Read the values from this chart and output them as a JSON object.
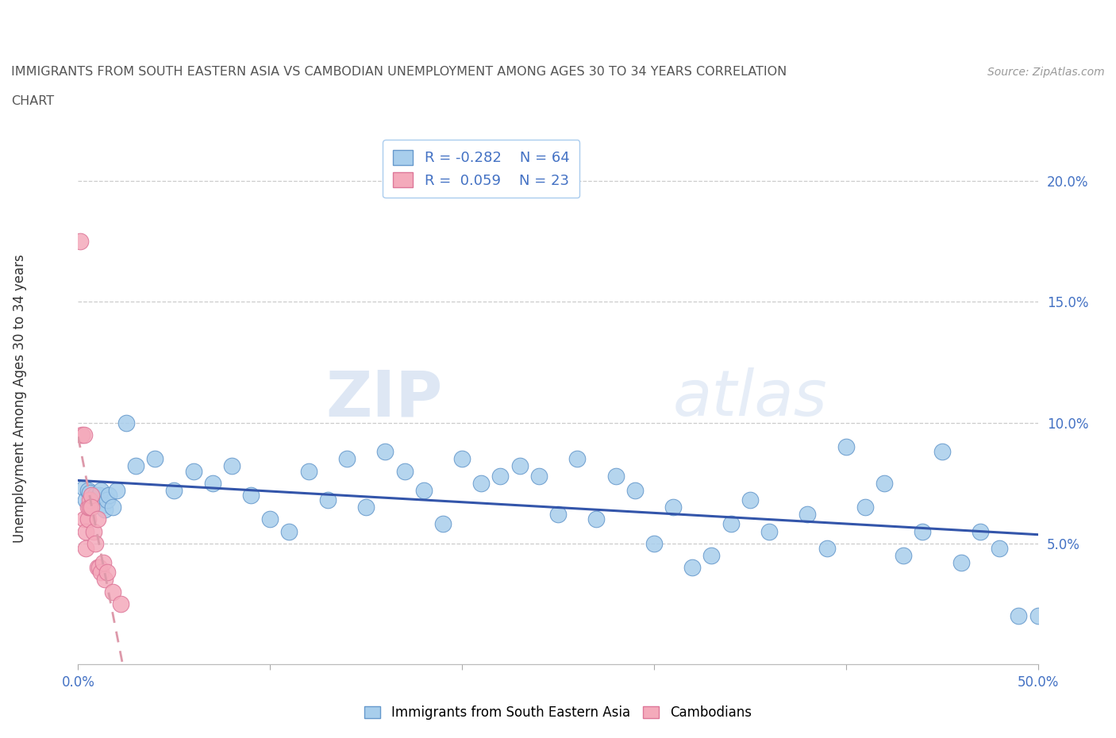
{
  "title_line1": "IMMIGRANTS FROM SOUTH EASTERN ASIA VS CAMBODIAN UNEMPLOYMENT AMONG AGES 30 TO 34 YEARS CORRELATION",
  "title_line2": "CHART",
  "source": "Source: ZipAtlas.com",
  "ylabel": "Unemployment Among Ages 30 to 34 years",
  "xlim": [
    0.0,
    0.5
  ],
  "ylim": [
    0.0,
    0.22
  ],
  "yticks_right": [
    0.05,
    0.1,
    0.15,
    0.2
  ],
  "ytick_right_labels": [
    "5.0%",
    "10.0%",
    "15.0%",
    "20.0%"
  ],
  "blue_R": -0.282,
  "blue_N": 64,
  "pink_R": 0.059,
  "pink_N": 23,
  "blue_color": "#A8CEEC",
  "blue_edge": "#6699CC",
  "pink_color": "#F4AABB",
  "pink_edge": "#DD7799",
  "blue_line_color": "#3355AA",
  "pink_line_color": "#DD99AA",
  "watermark": "ZIPatlas",
  "blue_x": [
    0.003,
    0.004,
    0.005,
    0.006,
    0.007,
    0.008,
    0.009,
    0.01,
    0.011,
    0.012,
    0.013,
    0.014,
    0.015,
    0.016,
    0.018,
    0.02,
    0.025,
    0.03,
    0.04,
    0.05,
    0.06,
    0.07,
    0.08,
    0.09,
    0.1,
    0.11,
    0.12,
    0.13,
    0.14,
    0.15,
    0.16,
    0.17,
    0.18,
    0.19,
    0.2,
    0.21,
    0.22,
    0.23,
    0.24,
    0.25,
    0.26,
    0.27,
    0.28,
    0.29,
    0.3,
    0.31,
    0.32,
    0.33,
    0.34,
    0.35,
    0.36,
    0.38,
    0.39,
    0.4,
    0.41,
    0.42,
    0.43,
    0.44,
    0.45,
    0.46,
    0.47,
    0.48,
    0.49,
    0.5
  ],
  "blue_y": [
    0.073,
    0.068,
    0.072,
    0.071,
    0.065,
    0.067,
    0.07,
    0.068,
    0.07,
    0.072,
    0.066,
    0.064,
    0.068,
    0.07,
    0.065,
    0.072,
    0.1,
    0.082,
    0.085,
    0.072,
    0.08,
    0.075,
    0.082,
    0.07,
    0.06,
    0.055,
    0.08,
    0.068,
    0.085,
    0.065,
    0.088,
    0.08,
    0.072,
    0.058,
    0.085,
    0.075,
    0.078,
    0.082,
    0.078,
    0.062,
    0.085,
    0.06,
    0.078,
    0.072,
    0.05,
    0.065,
    0.04,
    0.045,
    0.058,
    0.068,
    0.055,
    0.062,
    0.048,
    0.09,
    0.065,
    0.075,
    0.045,
    0.055,
    0.088,
    0.042,
    0.055,
    0.048,
    0.02,
    0.02
  ],
  "pink_x": [
    0.001,
    0.002,
    0.003,
    0.003,
    0.004,
    0.004,
    0.005,
    0.005,
    0.006,
    0.006,
    0.007,
    0.007,
    0.008,
    0.009,
    0.01,
    0.01,
    0.011,
    0.012,
    0.013,
    0.014,
    0.015,
    0.018,
    0.022
  ],
  "pink_y": [
    0.175,
    0.095,
    0.095,
    0.06,
    0.055,
    0.048,
    0.06,
    0.065,
    0.068,
    0.065,
    0.07,
    0.065,
    0.055,
    0.05,
    0.06,
    0.04,
    0.04,
    0.038,
    0.042,
    0.035,
    0.038,
    0.03,
    0.025
  ]
}
